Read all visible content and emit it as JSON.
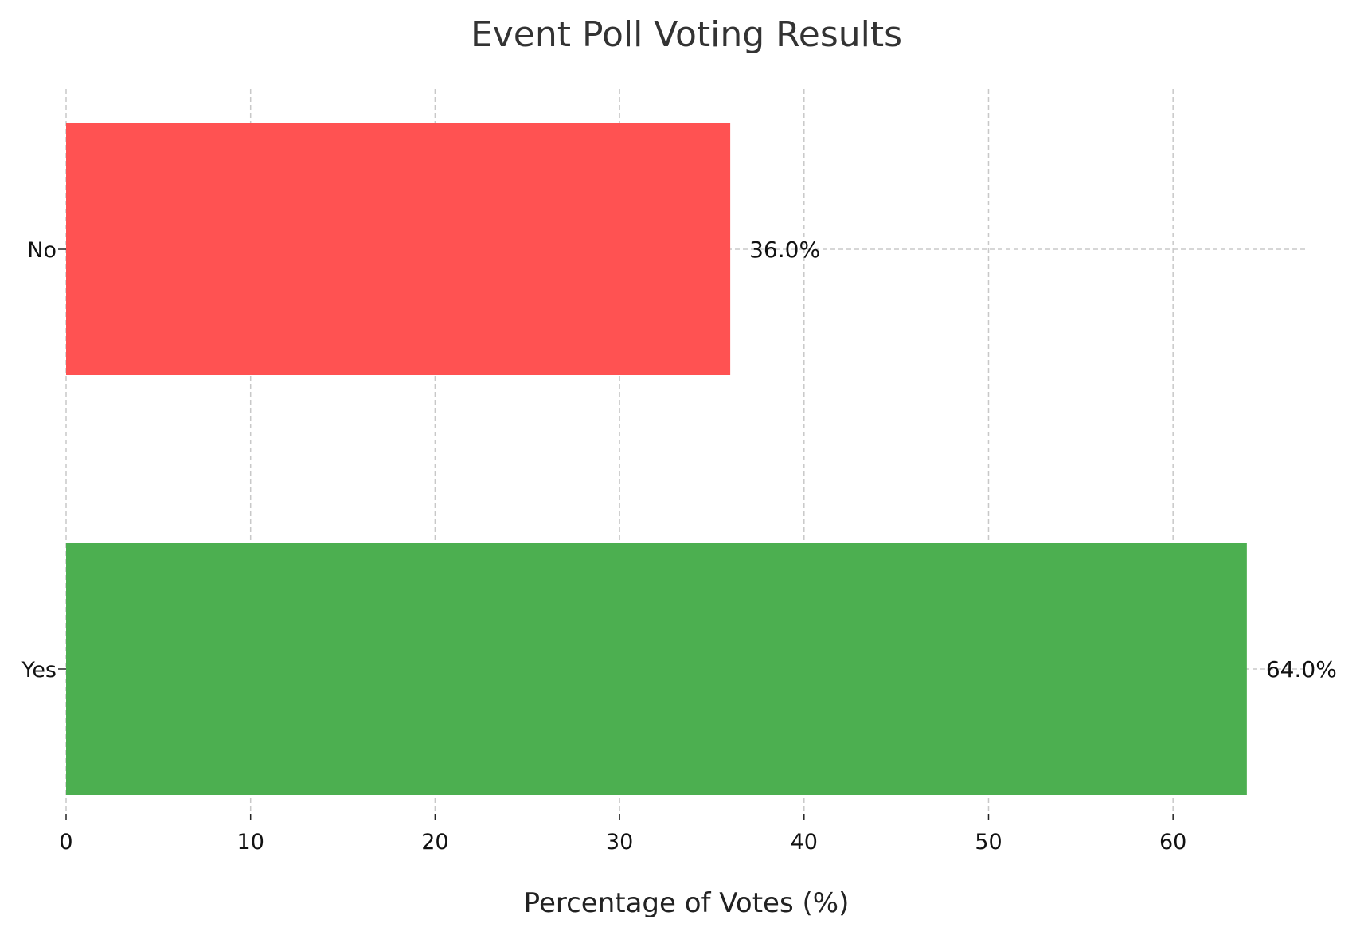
{
  "chart_data": {
    "type": "bar",
    "orientation": "horizontal",
    "title": "Event Poll Voting Results",
    "xlabel": "Percentage of Votes (%)",
    "ylabel": "",
    "categories": [
      "Yes",
      "No"
    ],
    "values": [
      64.0,
      36.0
    ],
    "value_labels": [
      "64.0%",
      "36.0%"
    ],
    "colors": [
      "#4caf50",
      "#ff5252"
    ],
    "xlim": [
      0,
      67.2
    ],
    "xticks": [
      0,
      10,
      20,
      30,
      40,
      50,
      60
    ],
    "grid": true,
    "legend": "none"
  }
}
